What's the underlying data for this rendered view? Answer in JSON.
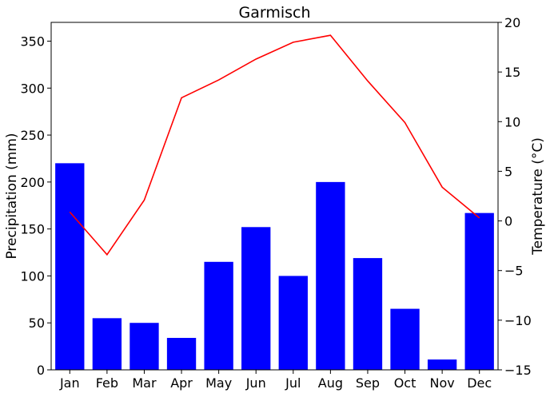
{
  "chart_data": {
    "type": "bar+line",
    "title": "Garmisch",
    "categories": [
      "Jan",
      "Feb",
      "Mar",
      "Apr",
      "May",
      "Jun",
      "Jul",
      "Aug",
      "Sep",
      "Oct",
      "Nov",
      "Dec"
    ],
    "series": [
      {
        "type": "bar",
        "axis": "left",
        "color": "#0000ff",
        "values": [
          220,
          55,
          50,
          34,
          115,
          152,
          100,
          200,
          119,
          65,
          11,
          167
        ]
      },
      {
        "type": "line",
        "axis": "right",
        "color": "#ff0000",
        "values": [
          0.9,
          -3.4,
          2.1,
          12.4,
          14.2,
          16.3,
          18.0,
          18.7,
          14.1,
          9.9,
          3.4,
          0.3
        ]
      }
    ],
    "ylabel_left": "Precipitation (mm)",
    "ylim_left": [
      0,
      370
    ],
    "yticks_left": [
      "0",
      "50",
      "100",
      "150",
      "200",
      "250",
      "300",
      "350"
    ],
    "ylabel_right": "Temperature (°C)",
    "ylim_right": [
      -15,
      20
    ],
    "yticks_right": [
      "−15",
      "−10",
      "−5",
      "0",
      "5",
      "10",
      "15",
      "20"
    ],
    "grid": false
  }
}
